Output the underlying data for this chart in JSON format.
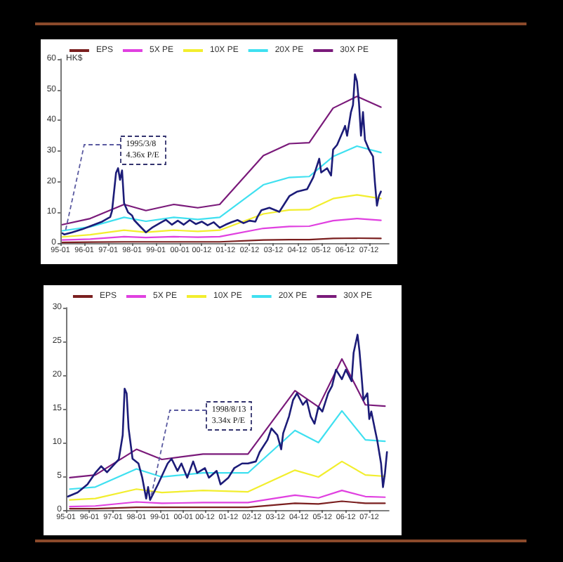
{
  "chart_data": [
    {
      "type": "line",
      "ylabel": "HK$",
      "xlim": [
        "1995-01",
        "2008-10"
      ],
      "ylim": [
        0,
        60
      ],
      "yticks": [
        0,
        10,
        20,
        30,
        40,
        50,
        60
      ],
      "xticks": [
        {
          "value": "1995-01",
          "label": "95-01"
        },
        {
          "value": "1996-01",
          "label": "96-01"
        },
        {
          "value": "1997-01",
          "label": "97-01"
        },
        {
          "value": "1998-01",
          "label": "98-01"
        },
        {
          "value": "1999-01",
          "label": "99-01"
        },
        {
          "value": "2000-01",
          "label": "00-01"
        },
        {
          "value": "2000-12",
          "label": "00-12"
        },
        {
          "value": "2001-12",
          "label": "01-12"
        },
        {
          "value": "2002-12",
          "label": "02-12"
        },
        {
          "value": "2003-12",
          "label": "03-12"
        },
        {
          "value": "2004-12",
          "label": "04-12"
        },
        {
          "value": "2005-12",
          "label": "05-12"
        },
        {
          "value": "2006-12",
          "label": "06-12"
        },
        {
          "value": "2007-12",
          "label": "07-12"
        }
      ],
      "legend": "top",
      "marker": "none",
      "series": [
        {
          "name": "EPS",
          "color": "#7a1f1f",
          "x": [
            "1995-02",
            "1996-04",
            "1997-09",
            "1998-08",
            "1999-10",
            "2000-10",
            "2001-09",
            "2003-07",
            "2004-08",
            "2005-06",
            "2006-06",
            "2007-06",
            "2008-06"
          ],
          "values": [
            0.2,
            0.3,
            0.4,
            0.4,
            0.4,
            0.4,
            0.4,
            1.0,
            1.1,
            1.1,
            1.5,
            1.6,
            1.5
          ]
        },
        {
          "name": "5X PE",
          "color": "#e040e0",
          "x": [
            "1995-02",
            "1996-04",
            "1997-09",
            "1998-08",
            "1999-10",
            "2000-10",
            "2001-09",
            "2003-07",
            "2004-08",
            "2005-06",
            "2006-06",
            "2007-06",
            "2008-06"
          ],
          "values": [
            1.0,
            1.3,
            2.1,
            1.8,
            2.1,
            1.9,
            2.1,
            4.8,
            5.4,
            5.5,
            7.3,
            8.0,
            7.4
          ]
        },
        {
          "name": "10X PE",
          "color": "#f2ee2e",
          "x": [
            "1995-02",
            "1996-04",
            "1997-09",
            "1998-08",
            "1999-10",
            "2000-10",
            "2001-09",
            "2003-07",
            "2004-08",
            "2005-06",
            "2006-06",
            "2007-06",
            "2008-06"
          ],
          "values": [
            2.0,
            2.7,
            4.2,
            3.5,
            4.2,
            3.8,
            4.2,
            9.5,
            10.8,
            10.9,
            14.5,
            15.7,
            14.5
          ]
        },
        {
          "name": "20X PE",
          "color": "#3fe0f0",
          "x": [
            "1995-02",
            "1996-04",
            "1997-09",
            "1998-08",
            "1999-10",
            "2000-10",
            "2001-09",
            "2003-07",
            "2004-08",
            "2005-06",
            "2006-06",
            "2007-06",
            "2008-06"
          ],
          "values": [
            4.0,
            5.3,
            8.4,
            7.1,
            8.4,
            7.7,
            8.4,
            19.0,
            21.4,
            21.7,
            28.2,
            31.6,
            29.5
          ]
        },
        {
          "name": "30X PE",
          "color": "#7a1a7a",
          "x": [
            "1995-02",
            "1996-04",
            "1997-09",
            "1998-08",
            "1999-10",
            "2000-10",
            "2001-09",
            "2003-07",
            "2004-08",
            "2005-06",
            "2006-06",
            "2007-06",
            "2008-06"
          ],
          "values": [
            6.0,
            8.0,
            12.6,
            10.6,
            12.6,
            11.5,
            12.6,
            28.5,
            32.4,
            32.7,
            44.0,
            47.8,
            44.3
          ]
        },
        {
          "color": "#1c1c78",
          "x": [
            "1995-02",
            "1995-03",
            "1995-07",
            "1995-12",
            "1996-04",
            "1996-10",
            "1997-02",
            "1997-03",
            "1997-05",
            "1997-06",
            "1997-07",
            "1997-08",
            "1997-09",
            "1997-11",
            "1998-01",
            "1998-02",
            "1998-05",
            "1998-08",
            "1998-11",
            "1999-03",
            "1999-06",
            "1999-09",
            "1999-12",
            "2000-03",
            "2000-06",
            "2000-09",
            "2000-12",
            "2001-03",
            "2001-06",
            "2001-09",
            "2001-12",
            "2002-03",
            "2002-06",
            "2002-09",
            "2002-12",
            "2003-03",
            "2003-04",
            "2003-06",
            "2003-10",
            "2004-03",
            "2004-08",
            "2004-12",
            "2005-05",
            "2005-08",
            "2005-11",
            "2005-12",
            "2006-03",
            "2006-05",
            "2006-06",
            "2006-08",
            "2006-11",
            "2006-12",
            "2007-01",
            "2007-03",
            "2007-04",
            "2007-05",
            "2007-06",
            "2007-07",
            "2007-08",
            "2007-09",
            "2007-10",
            "2007-12",
            "2008-02",
            "2008-03",
            "2008-04",
            "2008-05",
            "2008-06"
          ],
          "values": [
            3.2,
            2.8,
            3.5,
            4.5,
            5.5,
            7.0,
            8.5,
            10.5,
            22.9,
            24.4,
            20.6,
            23.7,
            13.0,
            10.0,
            9.0,
            7.5,
            5.5,
            3.5,
            5.0,
            6.5,
            7.6,
            6.0,
            7.3,
            6.0,
            7.5,
            6.2,
            7.0,
            5.8,
            6.8,
            5.0,
            6.0,
            6.8,
            7.5,
            6.5,
            7.3,
            7.0,
            8.5,
            10.7,
            11.5,
            10.2,
            15.3,
            16.8,
            17.6,
            21.4,
            27.5,
            23.0,
            24.4,
            22.0,
            30.5,
            32.0,
            36.6,
            38.2,
            35.0,
            42.7,
            45.0,
            55.0,
            52.7,
            45.8,
            35.0,
            42.7,
            33.6,
            30.5,
            28.2,
            19.8,
            12.2,
            15.3,
            16.8
          ]
        }
      ],
      "annotations": [
        {
          "text": "1995/3/8\n4.36x P/E",
          "x": "1995-03",
          "y": 2.8
        }
      ]
    },
    {
      "type": "line",
      "xlim": [
        "1995-01",
        "2008-10"
      ],
      "ylim": [
        0,
        30
      ],
      "yticks": [
        0,
        5,
        10,
        15,
        20,
        25,
        30
      ],
      "xticks": [
        {
          "value": "1995-01",
          "label": "95-01"
        },
        {
          "value": "1996-01",
          "label": "96-01"
        },
        {
          "value": "1997-01",
          "label": "97-01"
        },
        {
          "value": "1998-01",
          "label": "98-01"
        },
        {
          "value": "1999-01",
          "label": "99-01"
        },
        {
          "value": "2000-01",
          "label": "00-01"
        },
        {
          "value": "2000-12",
          "label": "00-12"
        },
        {
          "value": "2001-12",
          "label": "01-12"
        },
        {
          "value": "2002-12",
          "label": "02-12"
        },
        {
          "value": "2003-12",
          "label": "03-12"
        },
        {
          "value": "2004-12",
          "label": "04-12"
        },
        {
          "value": "2005-12",
          "label": "05-12"
        },
        {
          "value": "2006-12",
          "label": "06-12"
        },
        {
          "value": "2007-12",
          "label": "07-12"
        }
      ],
      "legend": "top",
      "marker": "none",
      "series": [
        {
          "name": "EPS",
          "color": "#7a1f1f",
          "x": [
            "1995-03",
            "1996-04",
            "1998-01",
            "1999-02",
            "2000-11",
            "2002-10",
            "2004-10",
            "2005-10",
            "2006-10",
            "2007-10",
            "2008-08"
          ],
          "values": [
            0.2,
            0.2,
            0.4,
            0.4,
            0.4,
            0.4,
            1.0,
            0.9,
            1.3,
            1.0,
            1.0
          ]
        },
        {
          "name": "5X PE",
          "color": "#e040e0",
          "x": [
            "1995-03",
            "1996-04",
            "1998-01",
            "1999-02",
            "2000-11",
            "2002-10",
            "2004-10",
            "2005-10",
            "2006-10",
            "2007-10",
            "2008-08"
          ],
          "values": [
            0.5,
            0.6,
            1.2,
            1.0,
            1.1,
            1.1,
            2.2,
            1.8,
            2.9,
            2.0,
            1.9
          ]
        },
        {
          "name": "10X PE",
          "color": "#f2ee2e",
          "x": [
            "1995-03",
            "1996-04",
            "1998-01",
            "1999-02",
            "2000-11",
            "2002-10",
            "2004-10",
            "2005-10",
            "2006-10",
            "2007-10",
            "2008-08"
          ],
          "values": [
            1.5,
            1.7,
            3.1,
            2.6,
            2.9,
            2.7,
            5.9,
            4.9,
            7.2,
            5.2,
            5.0
          ]
        },
        {
          "name": "20X PE",
          "color": "#3fe0f0",
          "x": [
            "1995-03",
            "1996-04",
            "1998-01",
            "1999-02",
            "2000-11",
            "2002-10",
            "2004-10",
            "2005-10",
            "2006-10",
            "2007-10",
            "2008-08"
          ],
          "values": [
            3.1,
            3.4,
            6.1,
            4.9,
            5.5,
            5.5,
            11.8,
            10.0,
            14.7,
            10.4,
            10.2
          ]
        },
        {
          "name": "30X PE",
          "color": "#7a1a7a",
          "x": [
            "1995-03",
            "1996-04",
            "1998-01",
            "1999-02",
            "2000-11",
            "2002-10",
            "2004-10",
            "2005-10",
            "2006-10",
            "2007-10",
            "2008-08"
          ],
          "values": [
            4.8,
            5.2,
            9.0,
            7.5,
            8.3,
            8.3,
            17.7,
            15.3,
            22.4,
            15.6,
            15.4
          ]
        },
        {
          "color": "#1c1c78",
          "x": [
            "1995-02",
            "1995-07",
            "1995-12",
            "1996-04",
            "1996-07",
            "1996-10",
            "1997-02",
            "1997-04",
            "1997-06",
            "1997-07",
            "1997-08",
            "1997-09",
            "1997-11",
            "1998-02",
            "1998-04",
            "1998-06",
            "1998-07",
            "1998-08",
            "1998-12",
            "1999-05",
            "1999-07",
            "1999-10",
            "1999-12",
            "2000-03",
            "2000-06",
            "2000-08",
            "2000-12",
            "2001-02",
            "2001-06",
            "2001-08",
            "2001-12",
            "2002-03",
            "2002-07",
            "2002-10",
            "2003-02",
            "2003-04",
            "2003-08",
            "2003-10",
            "2004-01",
            "2004-03",
            "2004-04",
            "2004-07",
            "2004-09",
            "2004-11",
            "2005-02",
            "2005-04",
            "2005-06",
            "2005-08",
            "2005-10",
            "2005-12",
            "2006-03",
            "2006-05",
            "2006-07",
            "2006-10",
            "2006-12",
            "2007-03",
            "2007-04",
            "2007-06",
            "2007-07",
            "2007-08",
            "2007-09",
            "2007-11",
            "2007-12",
            "2008-01",
            "2008-03",
            "2008-04",
            "2008-06",
            "2008-07",
            "2008-08",
            "2008-09"
          ],
          "values": [
            2.0,
            2.6,
            3.8,
            5.5,
            6.5,
            5.6,
            6.9,
            7.5,
            11.1,
            18.0,
            17.3,
            12.1,
            7.6,
            6.9,
            4.8,
            1.7,
            3.4,
            1.5,
            3.8,
            6.9,
            7.6,
            5.8,
            6.9,
            4.8,
            7.2,
            5.5,
            6.2,
            4.8,
            5.8,
            3.8,
            4.8,
            6.2,
            6.9,
            6.9,
            7.2,
            8.6,
            10.4,
            12.1,
            11.1,
            9.0,
            11.4,
            13.9,
            16.3,
            17.3,
            15.6,
            16.3,
            13.9,
            12.8,
            15.3,
            14.6,
            17.3,
            18.4,
            20.8,
            19.4,
            20.8,
            19.1,
            23.3,
            26.0,
            23.6,
            20.1,
            16.3,
            17.3,
            13.5,
            14.6,
            11.8,
            10.4,
            6.9,
            3.4,
            5.5,
            8.6
          ]
        }
      ],
      "annotations": [
        {
          "text": "1998/8/13\n3.34x P/E",
          "x": "1998-08",
          "y": 1.5
        }
      ]
    }
  ]
}
